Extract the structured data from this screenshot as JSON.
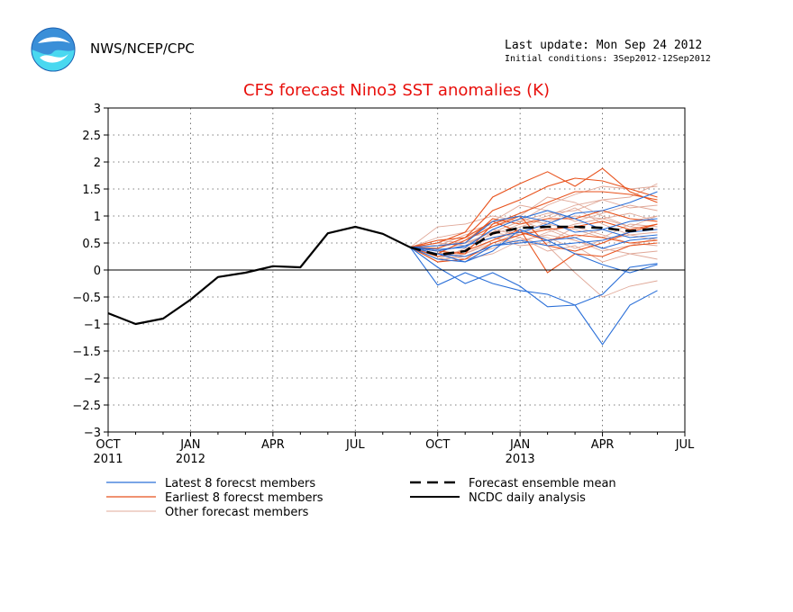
{
  "header": {
    "agency": "NWS/NCEP/CPC",
    "last_update": "Last update: Mon Sep 24 2012",
    "initial_conditions": "Initial conditions: 3Sep2012-12Sep2012"
  },
  "colors": {
    "latest": "#2a6fd8",
    "earliest": "#e8521c",
    "other": "#e0a898",
    "analysis": "#000000",
    "title": "#e8100c"
  },
  "chart_data": {
    "type": "line",
    "title": "CFS forecast Nino3 SST anomalies (K)",
    "ylim": [
      -3,
      3
    ],
    "yticks": [
      "3",
      "2.5",
      "2",
      "1.5",
      "1",
      "0.5",
      "0",
      "-0.5",
      "-1",
      "-1.5",
      "-2",
      "-2.5",
      "-3"
    ],
    "xticks": [
      {
        "label": "OCT",
        "year": "2011"
      },
      {
        "label": "JAN",
        "year": "2012"
      },
      {
        "label": "APR",
        "year": ""
      },
      {
        "label": "JUL",
        "year": ""
      },
      {
        "label": "OCT",
        "year": ""
      },
      {
        "label": "JAN",
        "year": "2013"
      },
      {
        "label": "APR",
        "year": ""
      },
      {
        "label": "JUL",
        "year": ""
      }
    ],
    "x_range": [
      "2011-10",
      "2013-07"
    ],
    "grid": true,
    "legend": {
      "latest": "Latest 8 forecst members",
      "earliest": "Earliest 8 forecst members",
      "other": "Other forecast members",
      "mean": "Forecast ensemble mean",
      "analysis": "NCDC daily analysis"
    },
    "analysis": {
      "x": [
        "2011-10-01",
        "2011-11-01",
        "2011-12-01",
        "2012-01-01",
        "2012-02-01",
        "2012-03-01",
        "2012-04-01",
        "2012-05-01",
        "2012-06-01",
        "2012-07-01",
        "2012-08-01",
        "2012-09-01"
      ],
      "values": [
        -0.8,
        -1.0,
        -0.9,
        -0.55,
        -0.13,
        -0.05,
        0.07,
        0.05,
        0.68,
        0.8,
        0.67,
        0.42
      ]
    },
    "ensemble_mean": {
      "x": [
        "2012-09-01",
        "2012-10-01",
        "2012-11-01",
        "2012-12-01",
        "2013-01-01",
        "2013-02-01",
        "2013-03-01",
        "2013-04-01",
        "2013-05-01",
        "2013-06-01"
      ],
      "values": [
        0.42,
        0.28,
        0.35,
        0.68,
        0.78,
        0.8,
        0.8,
        0.78,
        0.72,
        0.77
      ]
    },
    "members_x": [
      "2012-09-01",
      "2012-10-01",
      "2012-11-01",
      "2012-12-01",
      "2013-01-01",
      "2013-02-01",
      "2013-03-01",
      "2013-04-01",
      "2013-05-01",
      "2013-06-01"
    ],
    "latest_members": [
      [
        0.42,
        -0.28,
        -0.05,
        -0.25,
        -0.38,
        -0.45,
        -0.65,
        -1.38,
        -0.65,
        -0.38
      ],
      [
        0.42,
        0.05,
        -0.25,
        -0.05,
        -0.3,
        -0.68,
        -0.65,
        -0.45,
        0.05,
        0.12
      ],
      [
        0.42,
        0.3,
        0.15,
        0.45,
        0.5,
        0.55,
        0.6,
        0.4,
        0.55,
        0.6
      ],
      [
        0.42,
        0.38,
        0.42,
        0.75,
        0.95,
        1.1,
        0.95,
        0.75,
        0.6,
        0.65
      ],
      [
        0.42,
        0.2,
        0.15,
        0.35,
        0.75,
        0.55,
        0.3,
        0.1,
        -0.05,
        0.1
      ],
      [
        0.42,
        0.35,
        0.45,
        0.6,
        0.7,
        0.85,
        1.05,
        1.1,
        1.25,
        1.45
      ],
      [
        0.42,
        0.45,
        0.5,
        0.9,
        1.0,
        0.9,
        0.7,
        0.75,
        0.9,
        0.95
      ],
      [
        0.42,
        0.3,
        0.25,
        0.45,
        0.55,
        0.45,
        0.5,
        0.55,
        0.7,
        0.75
      ]
    ],
    "earliest_members": [
      [
        0.42,
        0.5,
        0.7,
        1.35,
        1.6,
        1.82,
        1.55,
        1.88,
        1.45,
        1.25
      ],
      [
        0.42,
        0.4,
        0.6,
        1.1,
        1.3,
        1.55,
        1.7,
        1.65,
        1.5,
        1.35
      ],
      [
        0.42,
        0.3,
        0.55,
        0.8,
        1.0,
        0.45,
        0.35,
        0.5,
        0.7,
        0.85
      ],
      [
        0.42,
        0.45,
        0.5,
        0.95,
        0.85,
        0.95,
        0.95,
        1.1,
        0.95,
        0.9
      ],
      [
        0.42,
        0.25,
        0.35,
        0.55,
        0.75,
        -0.05,
        0.3,
        0.25,
        0.45,
        0.5
      ],
      [
        0.42,
        0.35,
        0.3,
        0.85,
        1.05,
        1.25,
        1.45,
        1.45,
        1.4,
        1.3
      ],
      [
        0.42,
        0.15,
        0.2,
        0.5,
        0.65,
        0.75,
        0.8,
        0.9,
        0.75,
        0.85
      ],
      [
        0.42,
        0.55,
        0.6,
        0.9,
        0.7,
        0.55,
        0.65,
        0.6,
        0.5,
        0.55
      ]
    ],
    "other_members": [
      [
        0.42,
        0.8,
        0.85,
        1.0,
        0.9,
        1.2,
        1.4,
        1.55,
        1.5,
        1.55
      ],
      [
        0.42,
        0.6,
        0.7,
        0.85,
        1.0,
        1.35,
        1.25,
        1.0,
        0.8,
        0.75
      ],
      [
        0.42,
        0.2,
        0.4,
        0.6,
        0.45,
        0.5,
        0.8,
        0.65,
        0.5,
        0.45
      ],
      [
        0.42,
        0.35,
        0.5,
        0.7,
        0.9,
        1.05,
        1.1,
        1.3,
        1.35,
        1.6
      ],
      [
        0.42,
        0.3,
        0.25,
        0.4,
        0.6,
        0.35,
        0.45,
        0.15,
        0.3,
        0.2
      ],
      [
        0.42,
        0.5,
        0.45,
        0.75,
        0.65,
        0.8,
        0.6,
        0.75,
        0.9,
        1.0
      ],
      [
        0.42,
        0.25,
        0.3,
        0.55,
        0.8,
        0.95,
        1.15,
        0.85,
        0.65,
        0.55
      ],
      [
        0.42,
        0.4,
        0.55,
        0.9,
        1.2,
        1.1,
        0.9,
        1.05,
        1.2,
        1.1
      ],
      [
        0.42,
        0.3,
        0.2,
        0.3,
        0.55,
        0.65,
        0.55,
        0.4,
        0.3,
        0.35
      ],
      [
        0.42,
        0.45,
        0.65,
        0.8,
        0.95,
        0.85,
        0.75,
        0.6,
        0.85,
        0.8
      ],
      [
        0.42,
        0.35,
        0.45,
        0.6,
        0.5,
        0.7,
        0.85,
        0.95,
        1.05,
        0.9
      ],
      [
        0.42,
        0.15,
        0.3,
        0.5,
        0.7,
        0.6,
        0.4,
        0.55,
        0.65,
        0.7
      ],
      [
        0.42,
        0.55,
        0.5,
        0.65,
        0.85,
        1.0,
        1.2,
        1.3,
        1.15,
        1.2
      ],
      [
        0.42,
        0.3,
        0.35,
        0.7,
        0.6,
        0.45,
        -0.05,
        -0.5,
        -0.3,
        -0.2
      ],
      [
        0.42,
        0.4,
        0.6,
        0.7,
        0.9,
        0.75,
        0.55,
        0.35,
        0.45,
        0.6
      ],
      [
        0.42,
        0.2,
        0.25,
        0.45,
        0.65,
        0.9,
        1.0,
        0.95,
        0.8,
        1.0
      ]
    ]
  }
}
